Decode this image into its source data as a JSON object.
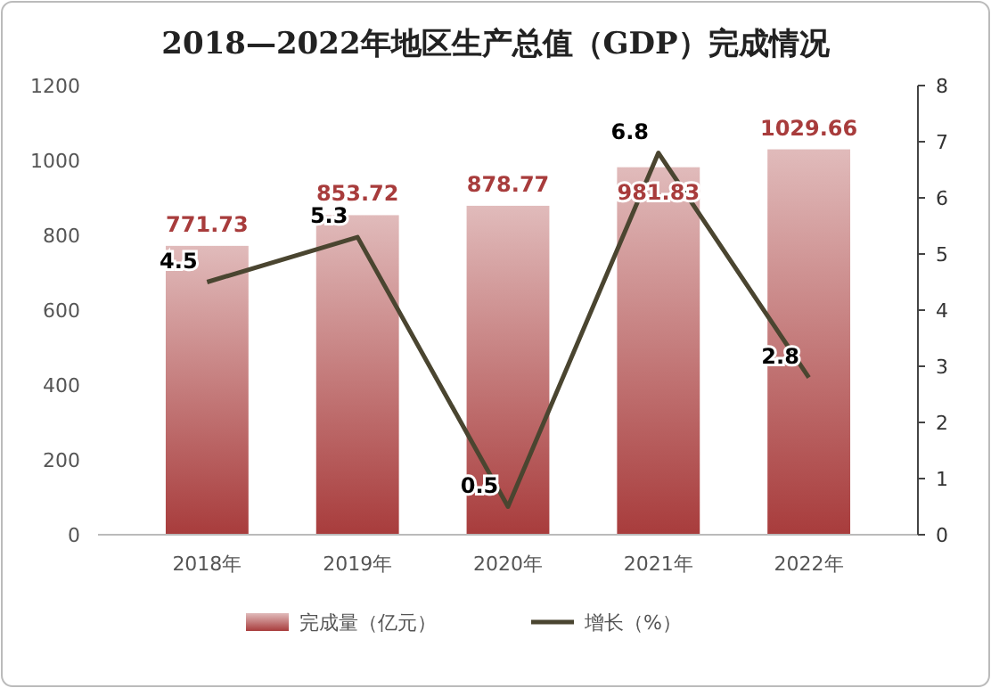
{
  "chart_data": {
    "type": "bar",
    "title": "2018—2022年地区生产总值（GDP）完成情况",
    "categories": [
      "2018年",
      "2019年",
      "2020年",
      "2021年",
      "2022年"
    ],
    "series": [
      {
        "name": "完成量（亿元）",
        "color": "#a83c3c",
        "values": [
          771.73,
          853.72,
          878.77,
          981.83,
          1029.66
        ]
      },
      {
        "name": "增长（%）",
        "type": "line",
        "axis": "y2",
        "color": "#4a4530",
        "values": [
          4.5,
          5.3,
          0.5,
          6.8,
          2.8
        ]
      }
    ],
    "ylim": [
      0,
      1200
    ],
    "yticks": [
      0,
      200,
      400,
      600,
      800,
      1000,
      1200
    ],
    "y2lim": [
      0,
      8
    ],
    "y2ticks": [
      0,
      1,
      2,
      3,
      4,
      5,
      6,
      7,
      8
    ],
    "data_labels": true,
    "legend": "bottom",
    "grid": false,
    "marker": "none",
    "line_style": "solid"
  }
}
